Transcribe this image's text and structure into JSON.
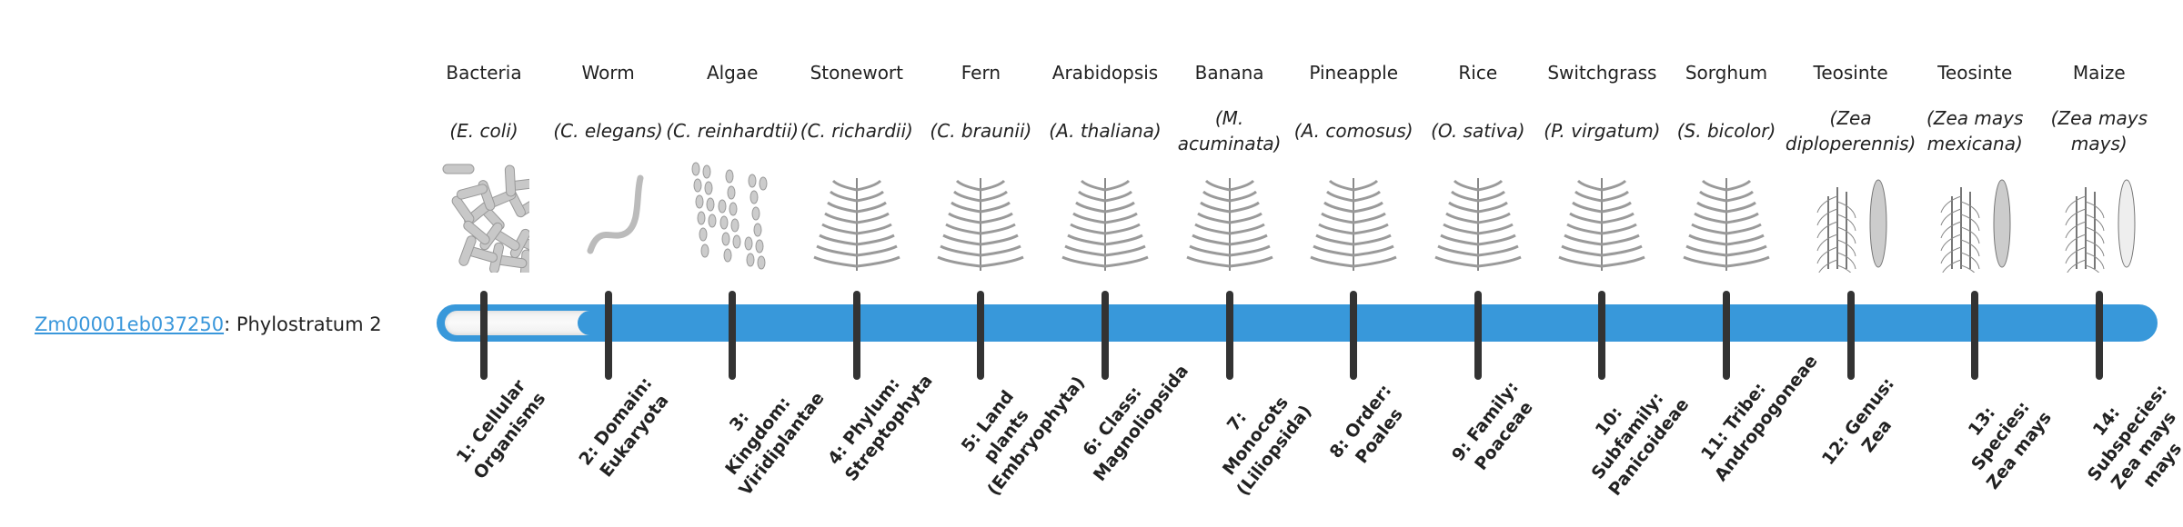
{
  "gene": {
    "id": "Zm00001eb037250",
    "separator": ":",
    "stratum_text": " Phylostratum 2"
  },
  "progress": {
    "current": 2,
    "total": 14
  },
  "colors": {
    "accent": "#3898da",
    "tick": "#333333",
    "link": "#3a97db"
  },
  "organisms": [
    {
      "common": "Bacteria",
      "scientific": "(E. coli)",
      "icon": "bacteria-image",
      "stratum": "1: Cellular Organisms"
    },
    {
      "common": "Worm",
      "scientific": "(C. elegans)",
      "icon": "worm-image",
      "stratum": "2: Domain: Eukaryota"
    },
    {
      "common": "Algae",
      "scientific": "(C. reinhardtii)",
      "icon": "algae-image",
      "stratum": "3: Kingdom: Viridiplantae"
    },
    {
      "common": "Stonewort",
      "scientific": "(C. richardii)",
      "icon": "stonewort-image",
      "stratum": "4: Phylum: Streptophyta"
    },
    {
      "common": "Fern",
      "scientific": "(C. braunii)",
      "icon": "fern-image",
      "stratum": "5: Land plants (Embryophyta)"
    },
    {
      "common": "Arabidopsis",
      "scientific": "(A. thaliana)",
      "icon": "arabidopsis-image",
      "stratum": "6: Class: Magnoliopsida"
    },
    {
      "common": "Banana",
      "scientific": "(M. acuminata)",
      "icon": "banana-image",
      "stratum": "7: Monocots (Liliopsida)"
    },
    {
      "common": "Pineapple",
      "scientific": "(A. comosus)",
      "icon": "pineapple-image",
      "stratum": "8: Order: Poales"
    },
    {
      "common": "Rice",
      "scientific": "(O. sativa)",
      "icon": "rice-image",
      "stratum": "9: Family: Poaceae"
    },
    {
      "common": "Switchgrass",
      "scientific": "(P. virgatum)",
      "icon": "switchgrass-image",
      "stratum": "10: Subfamily: Panicoideae"
    },
    {
      "common": "Sorghum",
      "scientific": "(S. bicolor)",
      "icon": "sorghum-image",
      "stratum": "11: Tribe: Andropogoneae"
    },
    {
      "common": "Teosinte",
      "scientific": "(Zea diploperennis)",
      "icon": "teosinte-image",
      "stratum": "12: Genus: Zea"
    },
    {
      "common": "Teosinte",
      "scientific": "(Zea mays mexicana)",
      "icon": "teosinte-mexicana-image",
      "stratum": "13: Species: Zea mays"
    },
    {
      "common": "Maize",
      "scientific": "(Zea mays mays)",
      "icon": "maize-image",
      "stratum": "14: Subspecies: Zea mays mays"
    }
  ]
}
